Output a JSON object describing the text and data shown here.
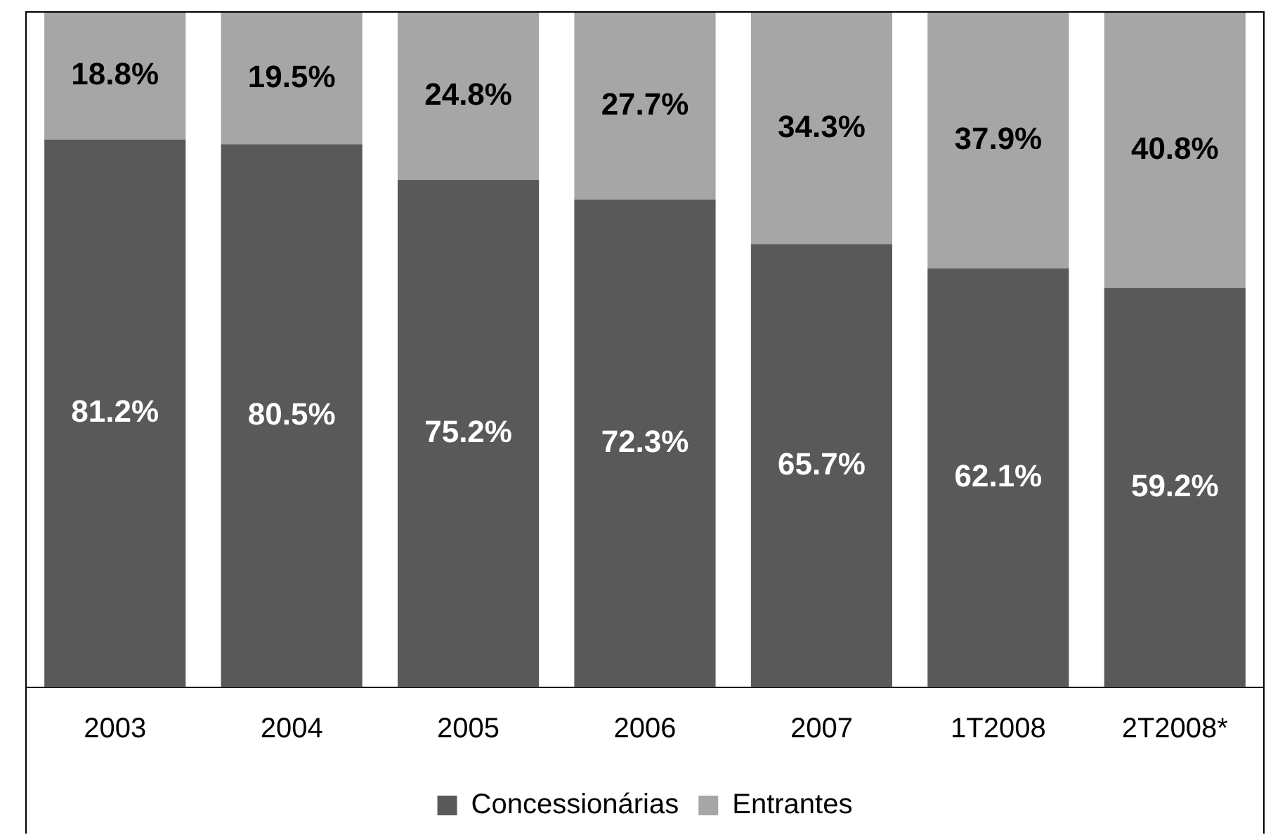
{
  "chart_data": {
    "type": "bar",
    "stacked": true,
    "categories": [
      "2003",
      "2004",
      "2005",
      "2006",
      "2007",
      "1T2008",
      "2T2008*"
    ],
    "series": [
      {
        "name": "Concessionárias",
        "color": "#595959",
        "values": [
          81.2,
          80.5,
          75.2,
          72.3,
          65.7,
          62.1,
          59.2
        ],
        "value_labels": [
          "81.2%",
          "80.5%",
          "75.2%",
          "72.3%",
          "65.7%",
          "62.1%",
          "59.2%"
        ]
      },
      {
        "name": "Entrantes",
        "color": "#a6a6a6",
        "values": [
          18.8,
          19.5,
          24.8,
          27.7,
          34.3,
          37.9,
          40.8
        ],
        "value_labels": [
          "18.8%",
          "19.5%",
          "24.8%",
          "27.7%",
          "34.3%",
          "37.9%",
          "40.8%"
        ]
      }
    ],
    "tick_labels": "x",
    "grid": false,
    "legend": "bottom"
  }
}
